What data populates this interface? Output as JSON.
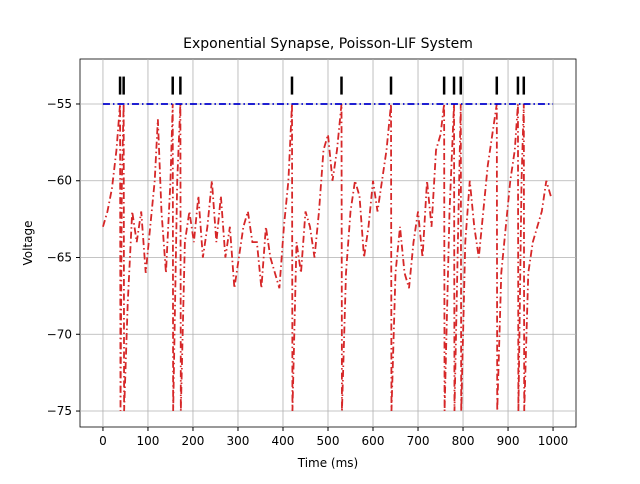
{
  "chart_data": {
    "type": "line",
    "title": "Exponential Synapse, Poisson-LIF System",
    "xlabel": "Time (ms)",
    "ylabel": "Voltage",
    "xlim": [
      -51,
      1051
    ],
    "ylim": [
      -76.04,
      -52.07
    ],
    "xticks": [
      0,
      100,
      200,
      300,
      400,
      500,
      600,
      700,
      800,
      900,
      1000
    ],
    "yticks": [
      {
        "value": -55,
        "label": "−55"
      },
      {
        "value": -60,
        "label": "−60"
      },
      {
        "value": -65,
        "label": "−65"
      },
      {
        "value": -70,
        "label": "−70"
      },
      {
        "value": -75,
        "label": "−75"
      }
    ],
    "grid": true,
    "series": [
      {
        "color": "#d62728",
        "style": "dashdot",
        "x": [
          0,
          10,
          20,
          30,
          38,
          39,
          42,
          46,
          47,
          55,
          65,
          75,
          85,
          95,
          105,
          115,
          122,
          130,
          140,
          150,
          155,
          156,
          165,
          172,
          173,
          182,
          192,
          202,
          212,
          222,
          232,
          242,
          252,
          262,
          272,
          282,
          292,
          302,
          312,
          322,
          332,
          342,
          352,
          362,
          372,
          382,
          392,
          402,
          412,
          420,
          421,
          430,
          440,
          450,
          460,
          470,
          480,
          490,
          500,
          510,
          520,
          530,
          531,
          540,
          550,
          560,
          570,
          580,
          590,
          600,
          610,
          620,
          630,
          640,
          641,
          650,
          660,
          670,
          680,
          690,
          700,
          710,
          720,
          730,
          740,
          750,
          758,
          759,
          770,
          780,
          781,
          790,
          795,
          796,
          805,
          815,
          825,
          835,
          845,
          855,
          865,
          875,
          876,
          885,
          895,
          905,
          915,
          922,
          923,
          930,
          935,
          936,
          945,
          955,
          965,
          975,
          985,
          995
        ],
        "values": [
          -63,
          -62,
          -60.5,
          -58,
          -55,
          -75,
          -60,
          -55,
          -75,
          -68,
          -62,
          -64,
          -62,
          -66,
          -63,
          -60,
          -56,
          -62,
          -66,
          -60,
          -55,
          -75,
          -60,
          -55,
          -75,
          -64,
          -62,
          -64,
          -61,
          -65,
          -63,
          -60,
          -64,
          -61,
          -65,
          -63,
          -67,
          -65,
          -63,
          -62,
          -64,
          -64,
          -67,
          -63,
          -65,
          -66,
          -67,
          -63,
          -60,
          -55,
          -75,
          -64,
          -66,
          -62,
          -63,
          -65,
          -62,
          -58,
          -57,
          -60,
          -58,
          -55,
          -75,
          -66,
          -62,
          -60,
          -61,
          -65,
          -63,
          -60,
          -62,
          -60,
          -58,
          -55,
          -75,
          -66,
          -63,
          -66,
          -67,
          -64,
          -62,
          -65,
          -60,
          -63,
          -58,
          -57,
          -55,
          -75,
          -62,
          -55,
          -75,
          -62,
          -55,
          -75,
          -64,
          -60,
          -63,
          -65,
          -62,
          -59,
          -57,
          -55,
          -75,
          -66,
          -63,
          -60,
          -58,
          -55,
          -75,
          -60,
          -55,
          -75,
          -66,
          -64,
          -63,
          -62,
          -60,
          -61
        ]
      },
      {
        "color": "#0000cc",
        "style": "dashdot",
        "x": [
          0,
          1000
        ],
        "values": [
          -55,
          -55
        ]
      },
      {
        "type": "spikes",
        "color": "#000000",
        "x": [
          38,
          46,
          155,
          172,
          420,
          530,
          640,
          758,
          780,
          795,
          875,
          922,
          935
        ],
        "values": [
          -53.8,
          -53.8,
          -53.8,
          -53.8,
          -53.8,
          -53.8,
          -53.8,
          -53.8,
          -53.8,
          -53.8,
          -53.8,
          -53.8,
          -53.8
        ]
      }
    ]
  }
}
